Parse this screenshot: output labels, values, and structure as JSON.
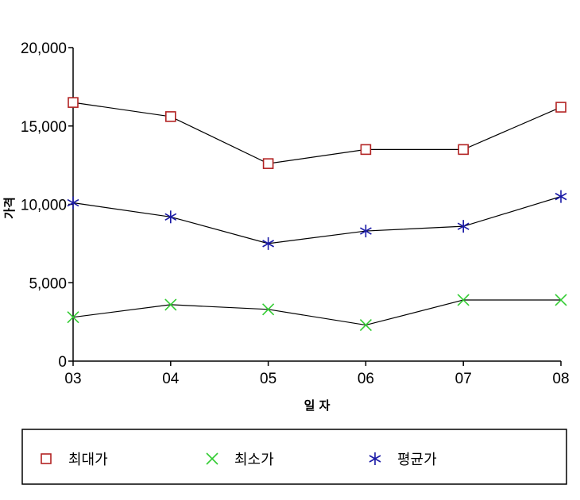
{
  "chart_data": {
    "type": "line",
    "title": "",
    "xlabel": "일 자",
    "ylabel": "가격",
    "categories": [
      "03",
      "04",
      "05",
      "06",
      "07",
      "08"
    ],
    "ylim": [
      0,
      20000
    ],
    "yticks": [
      0,
      5000,
      10000,
      15000,
      20000
    ],
    "ytick_labels": [
      "0",
      "5,000",
      "10,000",
      "15,000",
      "20,000"
    ],
    "grid": false,
    "legend_position": "bottom",
    "series": [
      {
        "name": "최대가",
        "marker": "square",
        "color": "#b22222",
        "values": [
          16500,
          15600,
          12600,
          13500,
          13500,
          16200
        ]
      },
      {
        "name": "최소가",
        "marker": "x",
        "color": "#33cc33",
        "values": [
          2800,
          3600,
          3300,
          2300,
          3900,
          3900
        ]
      },
      {
        "name": "평균가",
        "marker": "asterisk",
        "color": "#1a1aa6",
        "values": [
          10100,
          9200,
          7500,
          8300,
          8600,
          10500
        ]
      }
    ]
  }
}
